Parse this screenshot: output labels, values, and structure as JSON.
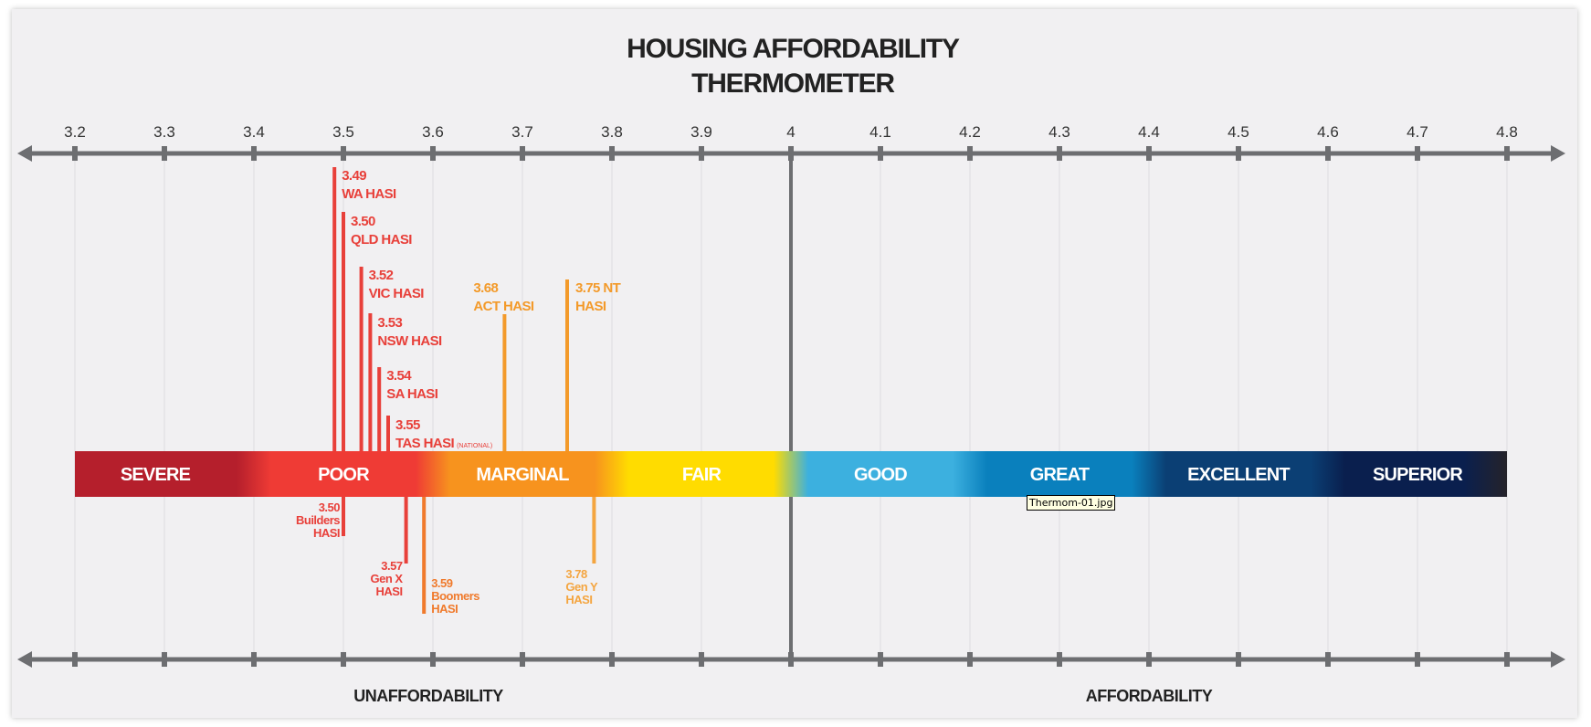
{
  "tooltip": "Thermom-01.jpg",
  "chart_data": {
    "type": "scatter",
    "title": [
      "HOUSING AFFORDABILITY",
      "THERMOMETER"
    ],
    "xlim": [
      3.2,
      4.8
    ],
    "ticks": [
      "3.2",
      "3.3",
      "3.4",
      "3.5",
      "3.6",
      "3.7",
      "3.8",
      "3.9",
      "4",
      "4.1",
      "4.2",
      "4.3",
      "4.4",
      "4.5",
      "4.6",
      "4.7",
      "4.8"
    ],
    "divider_value": 4,
    "bottom_labels": {
      "left": "UNAFFORDABILITY",
      "right": "AFFORDABILITY"
    },
    "bands": [
      {
        "label": "SEVERE",
        "from": 3.2,
        "to": 3.4,
        "color": "#b51f2c"
      },
      {
        "label": "POOR",
        "from": 3.4,
        "to": 3.6,
        "color": "#ef3b35"
      },
      {
        "label": "MARGINAL",
        "from": 3.6,
        "to": 3.8,
        "color": "#f7931e"
      },
      {
        "label": "FAIR",
        "from": 3.8,
        "to": 4.0,
        "color": "#ffdc00"
      },
      {
        "label": "GOOD",
        "from": 4.0,
        "to": 4.2,
        "color": "#3cb0df"
      },
      {
        "label": "GREAT",
        "from": 4.2,
        "to": 4.4,
        "color": "#0a80bd"
      },
      {
        "label": "EXCELLENT",
        "from": 4.4,
        "to": 4.6,
        "color": "#0b3f74"
      },
      {
        "label": "SUPERIOR",
        "from": 4.6,
        "to": 4.8,
        "color": "#0a1f4e"
      }
    ],
    "markers": [
      {
        "value": 3.49,
        "value_label": "3.49",
        "name": "WA HASI",
        "side": "top",
        "color": "#e8403a"
      },
      {
        "value": 3.5,
        "value_label": "3.50",
        "name": "QLD HASI",
        "side": "top",
        "color": "#e8403a"
      },
      {
        "value": 3.52,
        "value_label": "3.52",
        "name": "VIC HASI",
        "side": "top",
        "color": "#e8403a"
      },
      {
        "value": 3.53,
        "value_label": "3.53",
        "name": "NSW HASI",
        "side": "top",
        "color": "#e8403a"
      },
      {
        "value": 3.54,
        "value_label": "3.54",
        "name": "SA HASI",
        "side": "top",
        "color": "#e8403a"
      },
      {
        "value": 3.55,
        "value_label": "3.55",
        "name": "TAS HASI",
        "note": "(NATIONAL)",
        "side": "top",
        "color": "#e8403a"
      },
      {
        "value": 3.68,
        "value_label": "3.68",
        "name": "ACT HASI",
        "side": "top",
        "color": "#f39a2a"
      },
      {
        "value": 3.75,
        "value_label": "3.75 NT",
        "name": "HASI",
        "side": "top",
        "color": "#f39a2a"
      },
      {
        "value": 3.5,
        "value_label": "3.50",
        "name": "Builders",
        "name2": "HASI",
        "side": "bottom",
        "color": "#e8403a"
      },
      {
        "value": 3.57,
        "value_label": "3.57",
        "name": "Gen X",
        "name2": "HASI",
        "side": "bottom",
        "color": "#e8403a"
      },
      {
        "value": 3.59,
        "value_label": "3.59",
        "name": "Boomers",
        "name2": "HASI",
        "side": "bottom",
        "color": "#f07a2c"
      },
      {
        "value": 3.78,
        "value_label": "3.78",
        "name": "Gen Y",
        "name2": "HASI",
        "side": "bottom",
        "color": "#f4a540"
      }
    ]
  }
}
